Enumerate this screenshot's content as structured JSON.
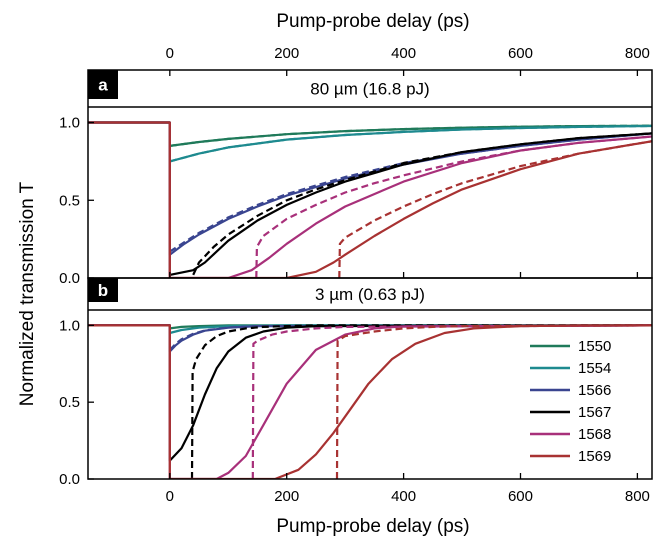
{
  "figure": {
    "top_xlabel": "Pump-probe delay (ps)",
    "bottom_xlabel": "Pump-probe delay (ps)",
    "ylabel": "Normalized transmission T"
  },
  "chart_data": [
    {
      "type": "line",
      "panel_letter": "a",
      "title": "80 µm (16.8 pJ)",
      "xlim": [
        -140,
        825
      ],
      "ylim": [
        0,
        1.1
      ],
      "xticks": [
        0,
        200,
        400,
        600,
        800
      ],
      "xtick_labels": [
        "0",
        "200",
        "400",
        "600",
        "800"
      ],
      "yticks": [
        0,
        0.5,
        1.0
      ],
      "ytick_labels": [
        "0.0",
        "0.5",
        "1.0"
      ],
      "grid": false,
      "series": [
        {
          "name": "1550",
          "color": "#1f7a5a",
          "style": "solid",
          "x": [
            -140,
            -0.1,
            0,
            50,
            100,
            200,
            300,
            400,
            500,
            600,
            700,
            825
          ],
          "y": [
            1,
            1,
            0.85,
            0.875,
            0.895,
            0.925,
            0.945,
            0.958,
            0.967,
            0.973,
            0.977,
            0.98
          ]
        },
        {
          "name": "1550 fit",
          "color": "#1f7a5a",
          "style": "dashed",
          "x": [
            0,
            50,
            100,
            200,
            300,
            400,
            500,
            600,
            700,
            825
          ],
          "y": [
            0.85,
            0.875,
            0.895,
            0.925,
            0.945,
            0.958,
            0.967,
            0.973,
            0.977,
            0.98
          ]
        },
        {
          "name": "1554",
          "color": "#1e8a8f",
          "style": "solid",
          "x": [
            -140,
            -0.1,
            0,
            50,
            100,
            200,
            300,
            400,
            500,
            600,
            700,
            825
          ],
          "y": [
            1,
            1,
            0.75,
            0.8,
            0.84,
            0.89,
            0.92,
            0.94,
            0.955,
            0.965,
            0.972,
            0.978
          ]
        },
        {
          "name": "1554 fit",
          "color": "#1e8a8f",
          "style": "dashed",
          "x": [
            0,
            50,
            100,
            200,
            300,
            400,
            500,
            600,
            700,
            825
          ],
          "y": [
            0.75,
            0.8,
            0.84,
            0.89,
            0.92,
            0.94,
            0.955,
            0.965,
            0.972,
            0.978
          ]
        },
        {
          "name": "1566",
          "color": "#3a4590",
          "style": "solid",
          "x": [
            -140,
            -0.1,
            0,
            25,
            50,
            100,
            150,
            200,
            300,
            400,
            500,
            600,
            700,
            825
          ],
          "y": [
            1,
            1,
            0.15,
            0.22,
            0.28,
            0.38,
            0.46,
            0.53,
            0.64,
            0.73,
            0.8,
            0.85,
            0.89,
            0.93
          ]
        },
        {
          "name": "1566 fit",
          "color": "#3a4590",
          "style": "dashed",
          "x": [
            0,
            25,
            50,
            100,
            150,
            200,
            300,
            400,
            500,
            600,
            700,
            825
          ],
          "y": [
            0.17,
            0.23,
            0.29,
            0.39,
            0.47,
            0.54,
            0.65,
            0.74,
            0.8,
            0.85,
            0.89,
            0.93
          ]
        },
        {
          "name": "1567",
          "color": "#000000",
          "style": "solid",
          "x": [
            -140,
            -0.1,
            0,
            40,
            60,
            80,
            100,
            150,
            200,
            250,
            300,
            400,
            500,
            600,
            700,
            825
          ],
          "y": [
            1,
            1,
            0.02,
            0.05,
            0.1,
            0.17,
            0.24,
            0.37,
            0.47,
            0.55,
            0.62,
            0.73,
            0.81,
            0.86,
            0.9,
            0.93
          ]
        },
        {
          "name": "1567 fit",
          "color": "#000000",
          "style": "dashed",
          "x": [
            40,
            50,
            75,
            100,
            150,
            200,
            250,
            300,
            400,
            500,
            600,
            700,
            825
          ],
          "y": [
            0.02,
            0.1,
            0.2,
            0.28,
            0.4,
            0.5,
            0.57,
            0.63,
            0.74,
            0.81,
            0.86,
            0.9,
            0.93
          ]
        },
        {
          "name": "1568",
          "color": "#a8307a",
          "style": "solid",
          "x": [
            -140,
            -0.1,
            0,
            100,
            140,
            170,
            200,
            250,
            300,
            400,
            500,
            600,
            700,
            825
          ],
          "y": [
            1,
            1,
            0,
            0,
            0.05,
            0.13,
            0.22,
            0.35,
            0.46,
            0.62,
            0.74,
            0.82,
            0.87,
            0.91
          ]
        },
        {
          "name": "1568 fit",
          "color": "#a8307a",
          "style": "dashed",
          "x": [
            148,
            149,
            160,
            200,
            250,
            300,
            350,
            400,
            500,
            600,
            700,
            825
          ],
          "y": [
            0,
            0.2,
            0.27,
            0.38,
            0.47,
            0.55,
            0.61,
            0.66,
            0.75,
            0.82,
            0.87,
            0.91
          ]
        },
        {
          "name": "1569",
          "color": "#a83232",
          "style": "solid",
          "x": [
            -140,
            -0.1,
            0,
            200,
            250,
            280,
            300,
            350,
            400,
            450,
            500,
            600,
            700,
            825
          ],
          "y": [
            1,
            1,
            0,
            0,
            0.04,
            0.1,
            0.15,
            0.27,
            0.38,
            0.48,
            0.57,
            0.7,
            0.8,
            0.88
          ]
        },
        {
          "name": "1569 fit",
          "color": "#a83232",
          "style": "dashed",
          "x": [
            290,
            291,
            300,
            350,
            400,
            450,
            500,
            600,
            700,
            825
          ],
          "y": [
            0,
            0.22,
            0.26,
            0.37,
            0.46,
            0.54,
            0.61,
            0.72,
            0.8,
            0.88
          ]
        }
      ]
    },
    {
      "type": "line",
      "panel_letter": "b",
      "title": "3 µm (0.63 pJ)",
      "xlim": [
        -140,
        825
      ],
      "ylim": [
        0,
        1.1
      ],
      "xticks": [
        0,
        200,
        400,
        600,
        800
      ],
      "xtick_labels": [
        "0",
        "200",
        "400",
        "600",
        "800"
      ],
      "yticks": [
        0,
        0.5,
        1.0
      ],
      "ytick_labels": [
        "0.0",
        "0.5",
        "1.0"
      ],
      "grid": false,
      "legend": {
        "placement": "bottom-right",
        "entries": [
          "1550",
          "1554",
          "1566",
          "1567",
          "1568",
          "1569"
        ],
        "colors": [
          "#1f7a5a",
          "#1e8a8f",
          "#3a4590",
          "#000000",
          "#a8307a",
          "#a83232"
        ]
      },
      "series": [
        {
          "name": "1550",
          "color": "#1f7a5a",
          "style": "solid",
          "x": [
            -140,
            -0.1,
            0,
            20,
            50,
            100,
            200,
            825
          ],
          "y": [
            1,
            1,
            0.98,
            0.99,
            0.995,
            1,
            1,
            1
          ]
        },
        {
          "name": "1554",
          "color": "#1e8a8f",
          "style": "solid",
          "x": [
            -140,
            -0.1,
            0,
            20,
            50,
            100,
            200,
            825
          ],
          "y": [
            1,
            1,
            0.95,
            0.97,
            0.985,
            0.995,
            1,
            1
          ]
        },
        {
          "name": "1566",
          "color": "#3a4590",
          "style": "solid",
          "x": [
            -140,
            -0.1,
            0,
            10,
            20,
            40,
            60,
            100,
            150,
            825
          ],
          "y": [
            1,
            1,
            0.83,
            0.87,
            0.9,
            0.94,
            0.965,
            0.985,
            0.995,
            1
          ]
        },
        {
          "name": "1566 fit",
          "color": "#3a4590",
          "style": "dashed",
          "x": [
            0,
            10,
            20,
            40,
            60,
            100,
            150,
            825
          ],
          "y": [
            0.84,
            0.88,
            0.91,
            0.945,
            0.967,
            0.986,
            0.995,
            1
          ]
        },
        {
          "name": "1567",
          "color": "#000000",
          "style": "solid",
          "x": [
            -140,
            -0.1,
            0,
            20,
            40,
            60,
            80,
            100,
            130,
            160,
            200,
            250,
            825
          ],
          "y": [
            1,
            1,
            0.12,
            0.2,
            0.35,
            0.55,
            0.72,
            0.83,
            0.92,
            0.96,
            0.985,
            0.995,
            1
          ]
        },
        {
          "name": "1567 fit",
          "color": "#000000",
          "style": "dashed",
          "x": [
            38,
            39,
            45,
            60,
            80,
            100,
            130,
            160,
            200,
            250,
            825
          ],
          "y": [
            0,
            0.7,
            0.78,
            0.87,
            0.93,
            0.96,
            0.98,
            0.99,
            0.995,
            1,
            1
          ]
        },
        {
          "name": "1568",
          "color": "#a8307a",
          "style": "solid",
          "x": [
            -140,
            -0.1,
            0,
            80,
            100,
            130,
            160,
            200,
            250,
            300,
            350,
            400,
            825
          ],
          "y": [
            1,
            1,
            0,
            0,
            0.04,
            0.15,
            0.35,
            0.62,
            0.84,
            0.94,
            0.98,
            0.993,
            1
          ]
        },
        {
          "name": "1568 fit",
          "color": "#a8307a",
          "style": "dashed",
          "x": [
            142,
            143,
            150,
            175,
            200,
            250,
            300,
            825
          ],
          "y": [
            0,
            0.88,
            0.9,
            0.94,
            0.96,
            0.98,
            0.99,
            1
          ]
        },
        {
          "name": "1569",
          "color": "#a83232",
          "style": "solid",
          "x": [
            -140,
            -0.1,
            0,
            180,
            220,
            250,
            280,
            310,
            340,
            380,
            420,
            470,
            520,
            600,
            700,
            825
          ],
          "y": [
            1,
            1,
            0,
            0,
            0.06,
            0.16,
            0.3,
            0.46,
            0.62,
            0.78,
            0.88,
            0.95,
            0.98,
            0.995,
            1,
            1
          ]
        },
        {
          "name": "1569 fit",
          "color": "#a83232",
          "style": "dashed",
          "x": [
            286,
            287,
            300,
            350,
            400,
            450,
            500,
            825
          ],
          "y": [
            0,
            0.9,
            0.93,
            0.96,
            0.98,
            0.99,
            0.995,
            1
          ]
        }
      ]
    }
  ]
}
